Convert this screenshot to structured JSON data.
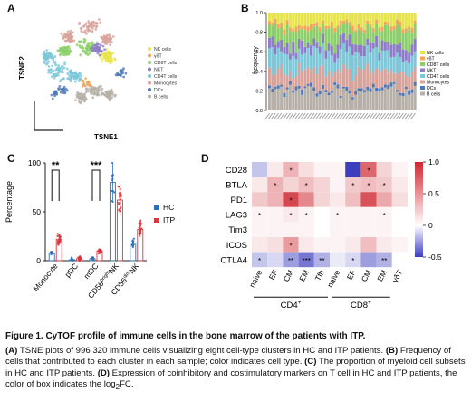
{
  "panels": {
    "a": "A",
    "b": "B",
    "c": "C",
    "d": "D"
  },
  "colors": {
    "nk": "#e7e34a",
    "gdt": "#f2a65a",
    "cd8t": "#8ccf6a",
    "nkt": "#8f7cc9",
    "cd4t": "#7cc7d8",
    "mono": "#d8a39b",
    "dc": "#4e79b8",
    "b": "#b6b0a8",
    "hc": "#2d6fb5",
    "itp": "#d9363e"
  },
  "tsne": {
    "xlabel": "TSNE1",
    "ylabel": "TSNE2",
    "legend": [
      "NK cells",
      "γδT",
      "CD8T cells",
      "NKT",
      "CD4T cells",
      "Monocytes",
      "DCs",
      "B cells"
    ]
  },
  "panel_b": {
    "ylabel": "frequency",
    "ticks": [
      "1.0",
      "0.8",
      "0.6",
      "0.4",
      "0.2",
      "0.0"
    ],
    "legend": [
      "NK cells",
      "γδT",
      "CD8T cells",
      "NKT",
      "CD4T cells",
      "Monocytes",
      "DCs",
      "B cells"
    ]
  },
  "chart_data": [
    {
      "type": "scatter",
      "id": "A",
      "xlabel": "TSNE1",
      "ylabel": "TSNE2",
      "series": [
        "NK cells",
        "γδT",
        "CD8T cells",
        "NKT",
        "CD4T cells",
        "Monocytes",
        "DCs",
        "B cells"
      ]
    },
    {
      "type": "bar",
      "id": "B",
      "stacked": true,
      "ylabel": "frequency",
      "ylim": [
        0,
        1.0
      ],
      "yticks": [
        0.0,
        0.2,
        0.4,
        0.6,
        0.8,
        1.0
      ],
      "n_samples": 50,
      "series_order_bottom_to_top": [
        "B cells",
        "DCs",
        "Monocytes",
        "CD4T cells",
        "NKT",
        "CD8T cells",
        "γδT",
        "NK cells"
      ]
    },
    {
      "type": "bar",
      "id": "C",
      "ylabel": "Percentage",
      "ylim": [
        0,
        100
      ],
      "yticks": [
        0,
        50,
        100
      ],
      "categories": [
        "Monocyte",
        "pDC",
        "mDC",
        "CD56brightNK",
        "CD56dimNK"
      ],
      "category_labels": [
        {
          "base": "Monocyte",
          "sup": ""
        },
        {
          "base": "pDC",
          "sup": ""
        },
        {
          "base": "mDC",
          "sup": ""
        },
        {
          "base": "CD56",
          "sup": "bright",
          "tail": "NK"
        },
        {
          "base": "CD56",
          "sup": "dim",
          "tail": "NK"
        }
      ],
      "series": [
        {
          "name": "HC",
          "values": [
            8,
            1,
            2,
            80,
            18
          ]
        },
        {
          "name": "ITP",
          "values": [
            22,
            2,
            10,
            62,
            32
          ]
        }
      ],
      "significance": [
        {
          "category": "Monocyte",
          "label": "**"
        },
        {
          "category": "mDC",
          "label": "***"
        }
      ]
    },
    {
      "type": "heatmap",
      "id": "D",
      "rows": [
        "CD28",
        "BTLA",
        "PD1",
        "LAG3",
        "Tim3",
        "ICOS",
        "CTLA4"
      ],
      "columns": [
        "naive",
        "EF",
        "CM",
        "EM",
        "Tfh",
        "naive",
        "EF",
        "CM",
        "EM",
        "γδT"
      ],
      "groups": [
        {
          "label": "CD4",
          "sup": "+",
          "span": [
            0,
            4
          ]
        },
        {
          "label": "CD8",
          "sup": "+",
          "span": [
            5,
            8
          ]
        }
      ],
      "colorbar": {
        "min": -0.5,
        "max": 1.0,
        "ticks": [
          "1.0",
          "0.5",
          "0",
          "-0.5"
        ]
      },
      "values": [
        [
          -0.15,
          0.1,
          0.35,
          0.15,
          0.05,
          0.05,
          -0.5,
          0.7,
          0.2,
          0.05
        ],
        [
          0.1,
          0.35,
          0.2,
          0.3,
          0.2,
          0.05,
          0.25,
          0.3,
          0.25,
          0.1
        ],
        [
          0.25,
          0.35,
          0.85,
          0.55,
          0.2,
          0.1,
          0.3,
          0.8,
          0.4,
          0.15
        ],
        [
          0.05,
          0.05,
          0.1,
          0.05,
          0.0,
          0.05,
          0.05,
          0.05,
          0.05,
          0.0
        ],
        [
          0.05,
          0.05,
          0.05,
          0.05,
          0.0,
          0.05,
          0.05,
          0.05,
          0.05,
          0.0
        ],
        [
          0.1,
          0.15,
          0.45,
          0.1,
          0.05,
          0.05,
          0.1,
          0.3,
          0.1,
          0.05
        ],
        [
          -0.15,
          -0.1,
          -0.25,
          -0.35,
          -0.2,
          -0.05,
          -0.1,
          -0.25,
          -0.2,
          0.0
        ]
      ],
      "stars": [
        [
          "",
          "",
          "*",
          "",
          "",
          "",
          "",
          "*",
          "",
          ""
        ],
        [
          "",
          "*",
          "",
          "*",
          "",
          "",
          "*",
          "*",
          "*",
          ""
        ],
        [
          "",
          "",
          "*",
          "",
          "",
          "",
          "",
          "",
          "",
          ""
        ],
        [
          "*",
          "",
          "*",
          "*",
          "",
          "*",
          "",
          "",
          "*",
          ""
        ],
        [
          "",
          "",
          "",
          "",
          "",
          "",
          "",
          "",
          "",
          ""
        ],
        [
          "",
          "",
          "*",
          "",
          "",
          "",
          "",
          "",
          "",
          ""
        ],
        [
          "*",
          "",
          "**",
          "***",
          "**",
          "",
          "*",
          "",
          "**",
          ""
        ]
      ]
    }
  ],
  "caption": {
    "title": "Figure 1. CyTOF profile of immune cells in the bone marrow of the patients with ITP.",
    "a_label": "(A)",
    "a_text": " TSNE plots of 996 320 immune cells visualizing eight cell-type clusters in HC and ITP patients. ",
    "b_label": "(B)",
    "b_text": " Frequency of cells that contributed to each cluster in each sample; color indicates cell type. ",
    "c_label": "(C)",
    "c_text": " The proportion of myeloid cell subsets in HC and ITP patients. ",
    "d_label": "(D)",
    "d_text": " Expression of coinhibitory and costimulatory markers on T cell in HC and ITP patients, the color of box indicates the log",
    "d_sub": "2",
    "d_end": "FC."
  }
}
